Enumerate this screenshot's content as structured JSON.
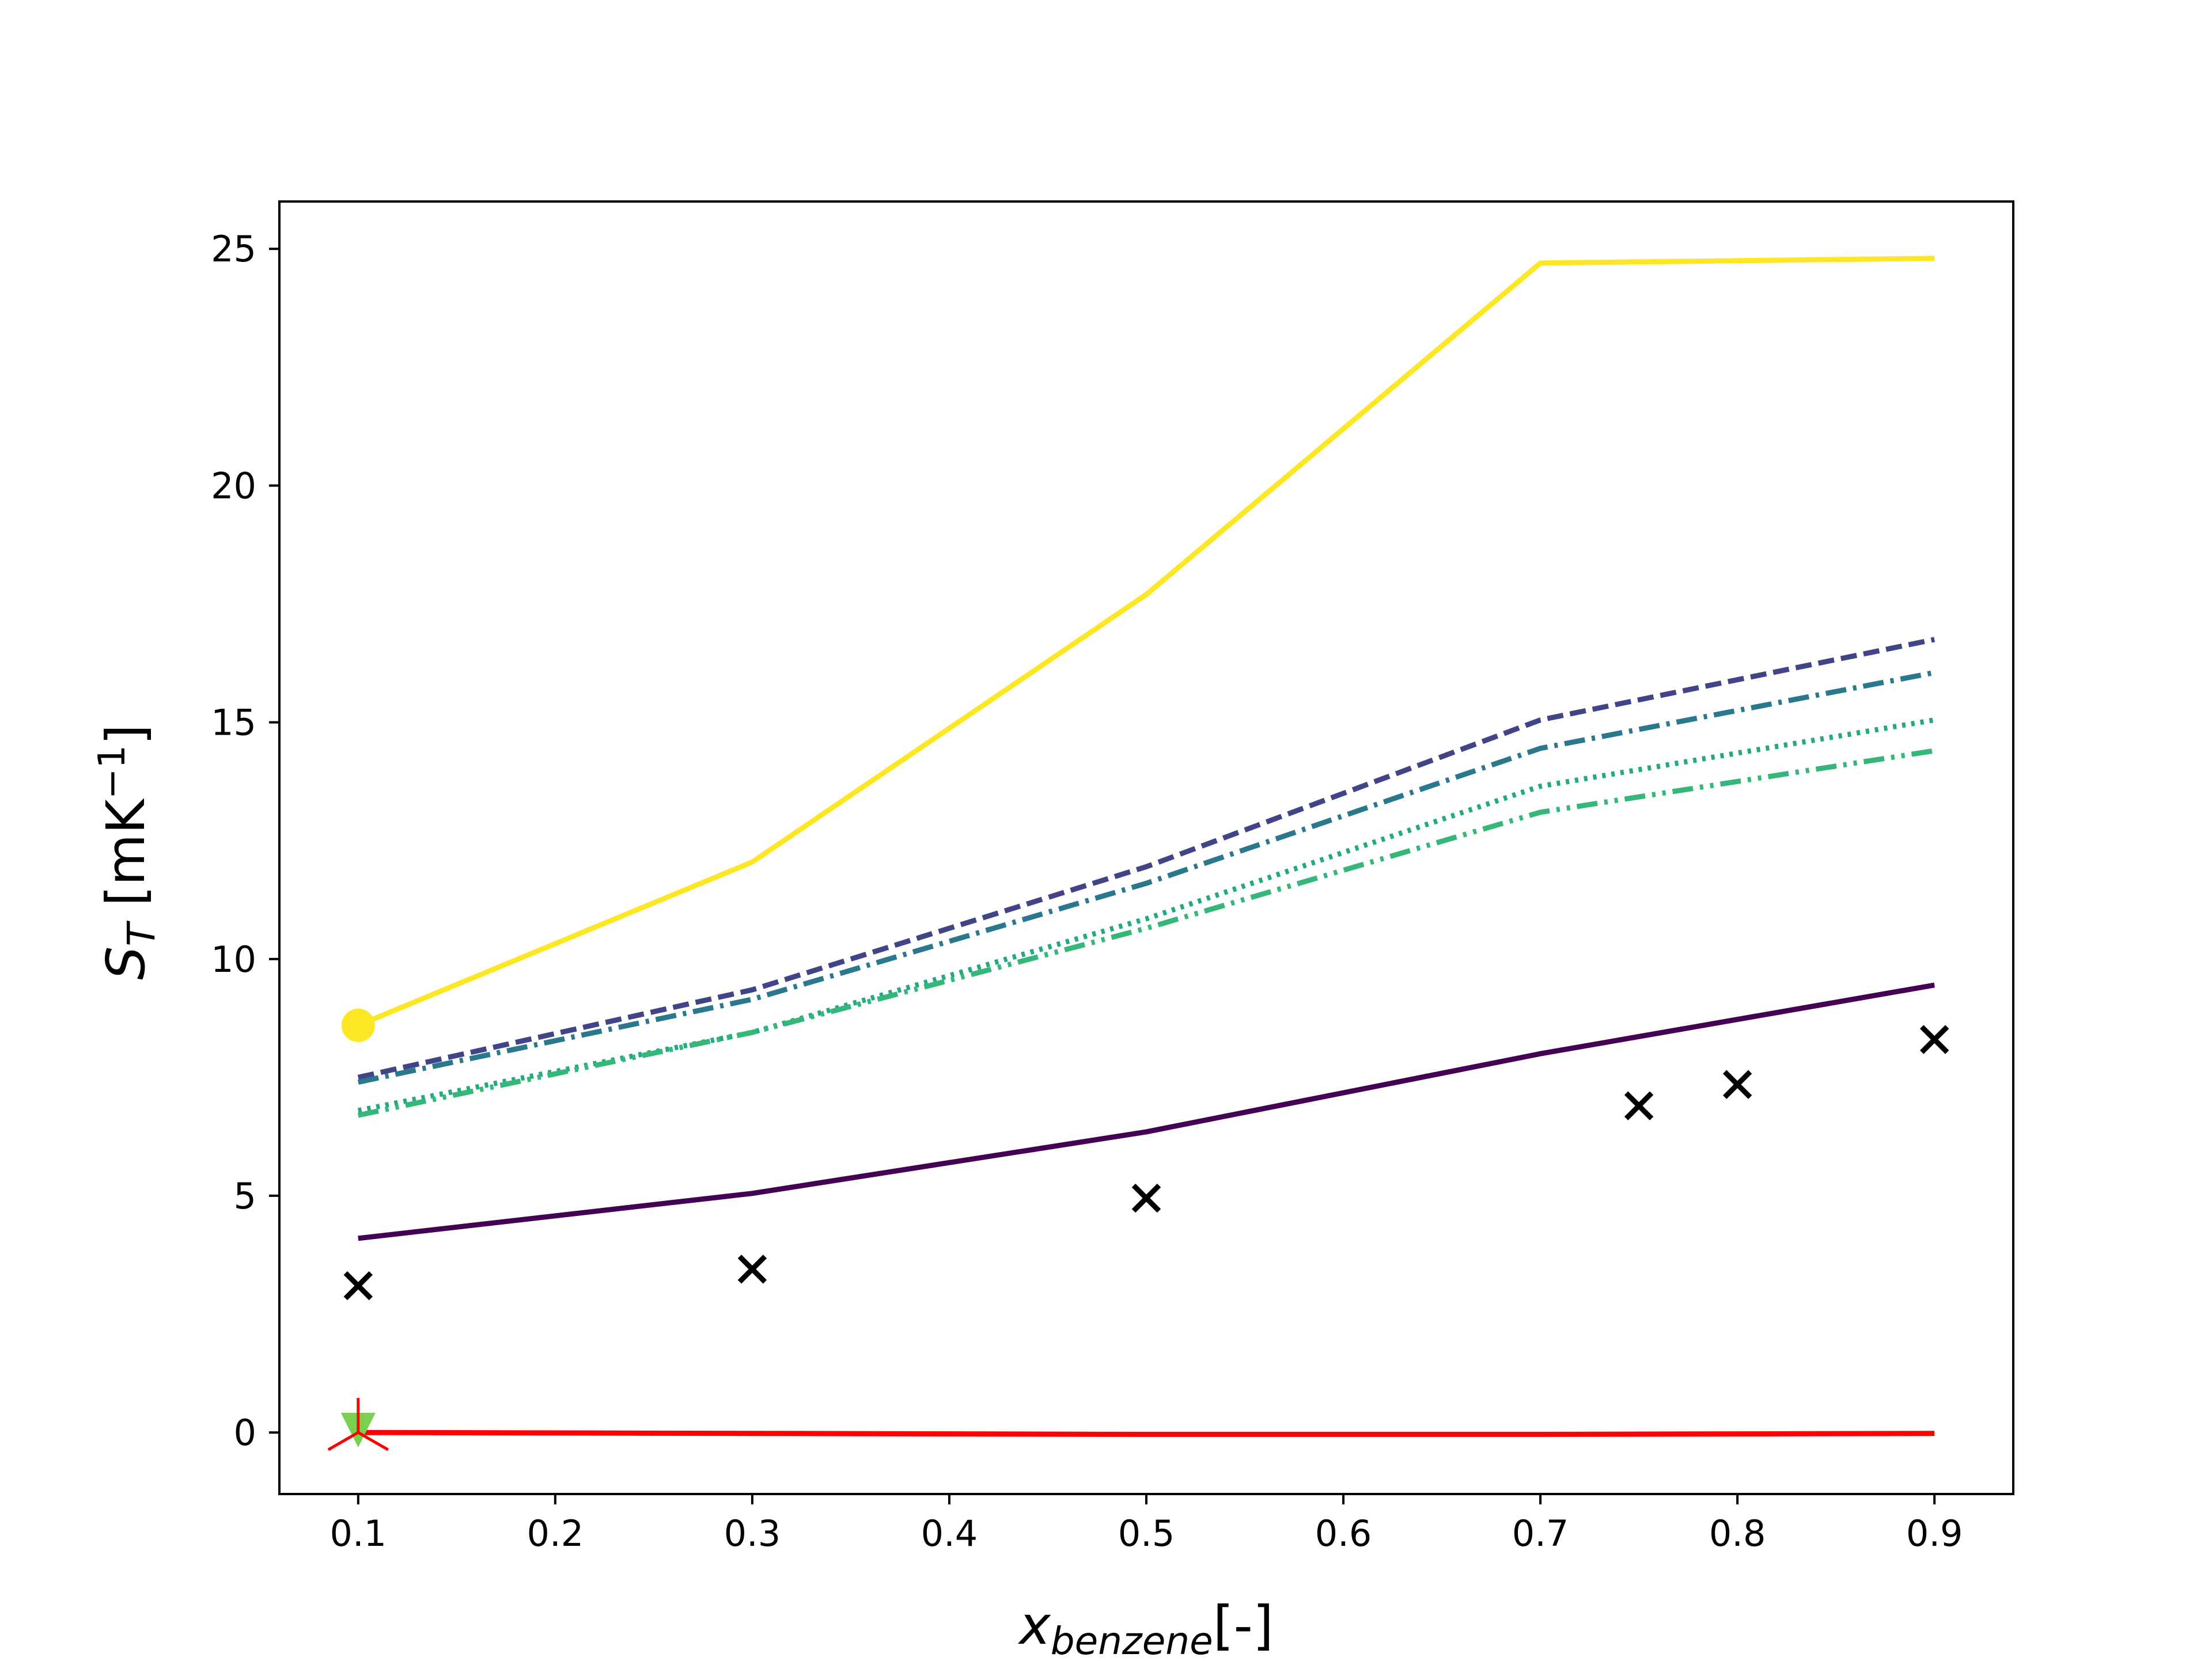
{
  "chart_data": {
    "type": "line",
    "title": "",
    "xlabel": {
      "base": "x",
      "subscript": "benzene",
      "suffix": "[-]"
    },
    "ylabel": {
      "base": "S",
      "subscript": "T",
      "suffix": " [mK",
      "superscript": "−1",
      "close": "]"
    },
    "xlim": [
      0.06,
      0.94
    ],
    "ylim": [
      -1.3,
      26.0
    ],
    "xticks": [
      0.1,
      0.2,
      0.3,
      0.4,
      0.5,
      0.6,
      0.7,
      0.8,
      0.9
    ],
    "xtick_labels": [
      "0.1",
      "0.2",
      "0.3",
      "0.4",
      "0.5",
      "0.6",
      "0.7",
      "0.8",
      "0.9"
    ],
    "yticks": [
      0,
      5,
      10,
      15,
      20,
      25
    ],
    "ytick_labels": [
      "0",
      "5",
      "10",
      "15",
      "20",
      "25"
    ],
    "grid": false,
    "legend": "none",
    "series": [
      {
        "color": "#fde725",
        "style": "solid",
        "x": [
          0.1,
          0.3,
          0.5,
          0.7,
          0.9
        ],
        "y": [
          8.6,
          12.05,
          17.7,
          24.7,
          24.8
        ]
      },
      {
        "color": "#440154",
        "style": "solid",
        "x": [
          0.1,
          0.3,
          0.5,
          0.7,
          0.9
        ],
        "y": [
          4.1,
          5.05,
          6.35,
          8.0,
          9.45
        ]
      },
      {
        "color": "#414487",
        "style": "dashed",
        "x": [
          0.1,
          0.3,
          0.5,
          0.7,
          0.9
        ],
        "y": [
          7.5,
          9.35,
          11.95,
          15.05,
          16.75
        ]
      },
      {
        "color": "#2a788e",
        "style": "dashdot",
        "x": [
          0.1,
          0.3,
          0.5,
          0.7,
          0.9
        ],
        "y": [
          7.4,
          9.15,
          11.6,
          14.45,
          16.05
        ]
      },
      {
        "color": "#22a884",
        "style": "dotted",
        "x": [
          0.1,
          0.3,
          0.5,
          0.7,
          0.9
        ],
        "y": [
          6.8,
          8.45,
          10.85,
          13.65,
          15.05
        ]
      },
      {
        "color": "#35b779",
        "style": "dashdotdot",
        "x": [
          0.1,
          0.3,
          0.5,
          0.7,
          0.9
        ],
        "y": [
          6.7,
          8.45,
          10.65,
          13.1,
          14.4
        ]
      },
      {
        "color": "#ff0000",
        "style": "solid",
        "x": [
          0.1,
          0.3,
          0.5,
          0.7,
          0.9
        ],
        "y": [
          0.0,
          -0.02,
          -0.04,
          -0.04,
          -0.02
        ]
      }
    ],
    "points": [
      {
        "marker": "circle",
        "color": "#fde725",
        "x": 0.1,
        "y": 8.6
      },
      {
        "marker": "triangle-down",
        "color": "#7ad151",
        "x": 0.1,
        "y": 0.05
      },
      {
        "marker": "tri-star",
        "color": "#ff0000",
        "x": 0.1,
        "y": 0.0
      }
    ],
    "experimental": {
      "marker": "x",
      "color": "#000000",
      "x": [
        0.1,
        0.3,
        0.5,
        0.75,
        0.8,
        0.9
      ],
      "y": [
        3.1,
        3.45,
        4.95,
        6.9,
        7.35,
        8.3
      ]
    }
  }
}
